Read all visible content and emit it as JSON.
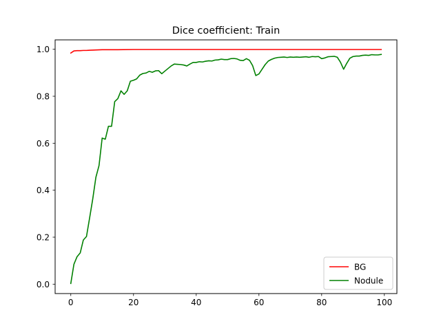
{
  "chart_data": {
    "type": "line",
    "title": "Dice coefficient: Train",
    "xlabel": "",
    "ylabel": "",
    "xlim": [
      -5,
      104
    ],
    "ylim": [
      -0.04,
      1.04
    ],
    "xticks": [
      0,
      20,
      40,
      60,
      80,
      100
    ],
    "yticks": [
      0.0,
      0.2,
      0.4,
      0.6,
      0.8,
      1.0
    ],
    "xtick_labels": [
      "0",
      "20",
      "40",
      "60",
      "80",
      "100"
    ],
    "ytick_labels": [
      "0.0",
      "0.2",
      "0.4",
      "0.6",
      "0.8",
      "1.0"
    ],
    "grid": false,
    "legend_position": "bottom-right",
    "series": [
      {
        "name": "BG",
        "color": "#ff0000",
        "x": [
          0,
          1,
          2,
          3,
          4,
          5,
          6,
          8,
          10,
          15,
          20,
          30,
          40,
          50,
          60,
          70,
          80,
          90,
          99
        ],
        "y": [
          0.984,
          0.993,
          0.994,
          0.994,
          0.995,
          0.995,
          0.996,
          0.997,
          0.998,
          0.998,
          0.999,
          0.999,
          0.999,
          0.999,
          0.999,
          0.999,
          0.999,
          0.999,
          0.999
        ]
      },
      {
        "name": "Nodule",
        "color": "#008000",
        "x": [
          0,
          1,
          2,
          3,
          4,
          5,
          6,
          7,
          8,
          9,
          10,
          11,
          12,
          13,
          14,
          15,
          16,
          17,
          18,
          19,
          20,
          21,
          22,
          23,
          24,
          25,
          26,
          27,
          28,
          29,
          30,
          31,
          32,
          33,
          34,
          35,
          36,
          37,
          38,
          39,
          40,
          41,
          42,
          43,
          44,
          45,
          46,
          47,
          48,
          49,
          50,
          51,
          52,
          53,
          54,
          55,
          56,
          57,
          58,
          59,
          60,
          61,
          62,
          63,
          64,
          65,
          66,
          67,
          68,
          69,
          70,
          71,
          72,
          73,
          74,
          75,
          76,
          77,
          78,
          79,
          80,
          81,
          82,
          83,
          84,
          85,
          86,
          87,
          88,
          89,
          90,
          91,
          92,
          93,
          94,
          95,
          96,
          97,
          98,
          99
        ],
        "y": [
          0.003,
          0.085,
          0.117,
          0.133,
          0.188,
          0.203,
          0.282,
          0.363,
          0.455,
          0.505,
          0.622,
          0.617,
          0.672,
          0.672,
          0.777,
          0.79,
          0.823,
          0.808,
          0.823,
          0.864,
          0.868,
          0.874,
          0.89,
          0.897,
          0.899,
          0.906,
          0.902,
          0.908,
          0.909,
          0.896,
          0.907,
          0.918,
          0.929,
          0.937,
          0.936,
          0.935,
          0.933,
          0.929,
          0.937,
          0.944,
          0.944,
          0.947,
          0.946,
          0.949,
          0.951,
          0.95,
          0.954,
          0.955,
          0.958,
          0.956,
          0.956,
          0.96,
          0.961,
          0.959,
          0.953,
          0.952,
          0.96,
          0.953,
          0.93,
          0.888,
          0.895,
          0.915,
          0.935,
          0.95,
          0.957,
          0.962,
          0.965,
          0.966,
          0.967,
          0.965,
          0.967,
          0.966,
          0.967,
          0.966,
          0.967,
          0.968,
          0.966,
          0.969,
          0.968,
          0.969,
          0.96,
          0.963,
          0.968,
          0.969,
          0.97,
          0.966,
          0.945,
          0.915,
          0.94,
          0.962,
          0.969,
          0.971,
          0.971,
          0.974,
          0.975,
          0.974,
          0.977,
          0.976,
          0.976,
          0.978
        ]
      }
    ]
  }
}
